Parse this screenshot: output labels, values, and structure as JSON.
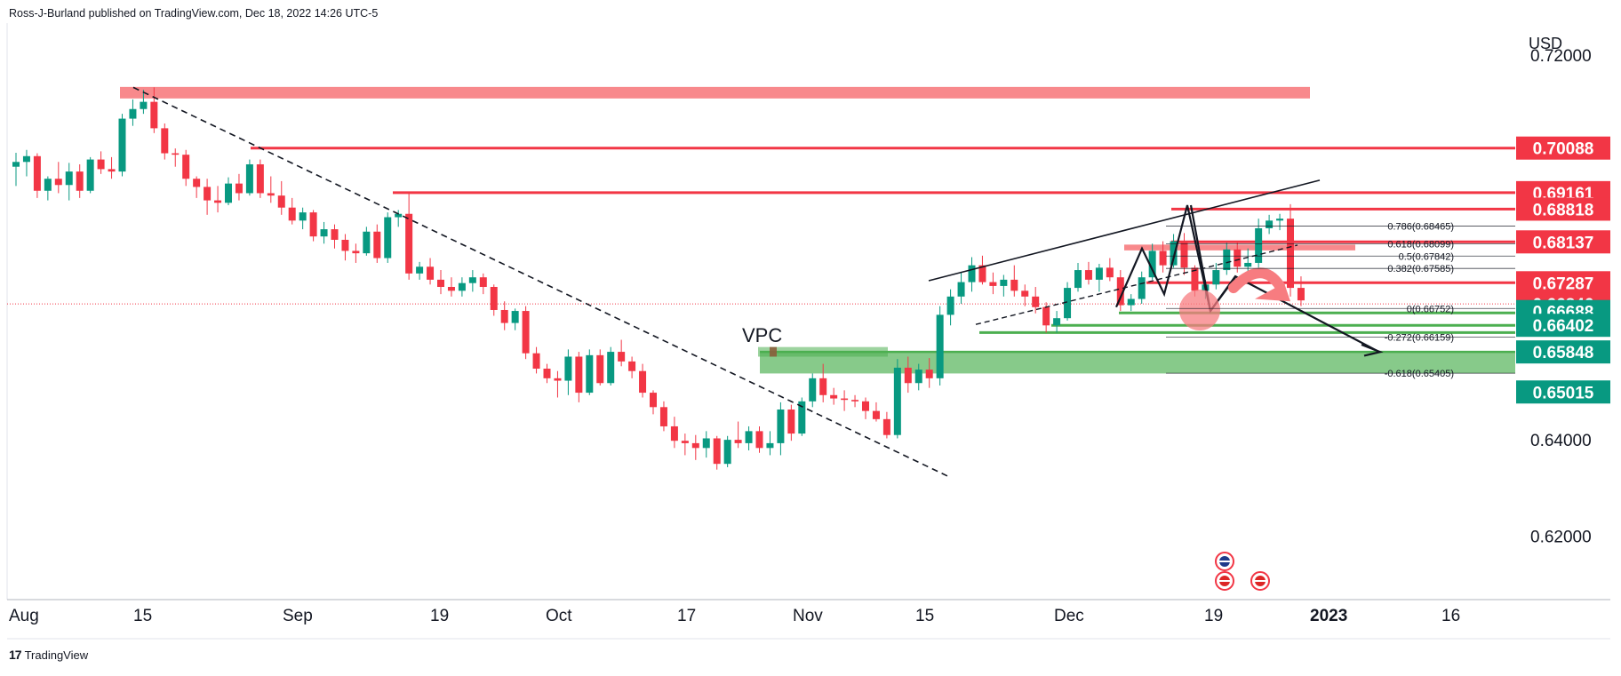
{
  "header": {
    "published_by": "Ross-J-Burland published on TradingView.com, Dec 18, 2022 14:26 UTC-5"
  },
  "footer": {
    "brand": "TradingView",
    "logo_glyph": "17"
  },
  "chart_data": {
    "type": "candlestick",
    "currency_label": "USD",
    "y_axis": {
      "range": [
        0.6053,
        0.7278
      ],
      "ticks": [
        "0.72000",
        "0.64000",
        "0.62000"
      ],
      "tick_values": [
        0.72,
        0.64,
        0.62
      ]
    },
    "x_axis": {
      "labels": [
        "Aug",
        "15",
        "Sep",
        "19",
        "Oct",
        "17",
        "Nov",
        "15",
        "Dec",
        "19",
        "2023",
        "16"
      ],
      "bold_labels": [
        "2023"
      ]
    },
    "price_labels": [
      {
        "text": "0.70088",
        "value": 0.70088,
        "color": "#f23645"
      },
      {
        "text": "0.69161",
        "value": 0.69161,
        "color": "#f23645"
      },
      {
        "text": "0.68818",
        "value": 0.68818,
        "color": "#f23645"
      },
      {
        "text": "0.68137",
        "value": 0.68137,
        "color": "#f23645"
      },
      {
        "text": "0.67287",
        "value": 0.67287,
        "color": "#f23645"
      },
      {
        "text": "0.66846",
        "value": 0.66846,
        "color": "#f23645"
      },
      {
        "text": "0.66688",
        "value": 0.66688,
        "color": "#089981"
      },
      {
        "text": "0.66402",
        "value": 0.66402,
        "color": "#089981"
      },
      {
        "text": "0.65848",
        "value": 0.65848,
        "color": "#089981"
      },
      {
        "text": "0.65015",
        "value": 0.65015,
        "color": "#089981"
      }
    ],
    "fib_levels": [
      {
        "text": "0.786(0.68465)",
        "value": 0.68465
      },
      {
        "text": "0.618(0.68099)",
        "value": 0.68099
      },
      {
        "text": "0.5(0.67842)",
        "value": 0.67842
      },
      {
        "text": "0.382(0.67585)",
        "value": 0.67585
      },
      {
        "text": "0(0.66752)",
        "value": 0.66752
      },
      {
        "text": "-0.272(0.66159)",
        "value": 0.66159
      },
      {
        "text": "-0.618(0.65405)",
        "value": 0.65405
      }
    ],
    "annotations": [
      {
        "text": "VPC"
      }
    ],
    "candles": [
      {
        "o": 0.697,
        "h": 0.6999,
        "l": 0.693,
        "c": 0.698
      },
      {
        "o": 0.698,
        "h": 0.7005,
        "l": 0.695,
        "c": 0.6992
      },
      {
        "o": 0.6992,
        "h": 0.6998,
        "l": 0.6905,
        "c": 0.692
      },
      {
        "o": 0.692,
        "h": 0.695,
        "l": 0.69,
        "c": 0.6945
      },
      {
        "o": 0.6945,
        "h": 0.698,
        "l": 0.6915,
        "c": 0.6932
      },
      {
        "o": 0.6932,
        "h": 0.6978,
        "l": 0.69,
        "c": 0.696
      },
      {
        "o": 0.696,
        "h": 0.6975,
        "l": 0.6905,
        "c": 0.692
      },
      {
        "o": 0.692,
        "h": 0.699,
        "l": 0.6915,
        "c": 0.6985
      },
      {
        "o": 0.6985,
        "h": 0.7002,
        "l": 0.6955,
        "c": 0.6965
      },
      {
        "o": 0.6965,
        "h": 0.699,
        "l": 0.6945,
        "c": 0.696
      },
      {
        "o": 0.696,
        "h": 0.708,
        "l": 0.695,
        "c": 0.707
      },
      {
        "o": 0.707,
        "h": 0.711,
        "l": 0.7055,
        "c": 0.709
      },
      {
        "o": 0.709,
        "h": 0.713,
        "l": 0.708,
        "c": 0.7105
      },
      {
        "o": 0.7105,
        "h": 0.7135,
        "l": 0.704,
        "c": 0.705
      },
      {
        "o": 0.705,
        "h": 0.706,
        "l": 0.6985,
        "c": 0.6998
      },
      {
        "o": 0.6998,
        "h": 0.7008,
        "l": 0.697,
        "c": 0.6995
      },
      {
        "o": 0.6995,
        "h": 0.7005,
        "l": 0.693,
        "c": 0.6945
      },
      {
        "o": 0.6945,
        "h": 0.695,
        "l": 0.6905,
        "c": 0.6928
      },
      {
        "o": 0.6928,
        "h": 0.6945,
        "l": 0.687,
        "c": 0.69
      },
      {
        "o": 0.69,
        "h": 0.693,
        "l": 0.6875,
        "c": 0.6895
      },
      {
        "o": 0.6895,
        "h": 0.6948,
        "l": 0.689,
        "c": 0.6935
      },
      {
        "o": 0.6935,
        "h": 0.6955,
        "l": 0.69,
        "c": 0.6915
      },
      {
        "o": 0.6915,
        "h": 0.6985,
        "l": 0.691,
        "c": 0.6975
      },
      {
        "o": 0.6975,
        "h": 0.6985,
        "l": 0.6905,
        "c": 0.6915
      },
      {
        "o": 0.6915,
        "h": 0.695,
        "l": 0.6895,
        "c": 0.691
      },
      {
        "o": 0.691,
        "h": 0.694,
        "l": 0.687,
        "c": 0.6885
      },
      {
        "o": 0.6885,
        "h": 0.6905,
        "l": 0.685,
        "c": 0.6858
      },
      {
        "o": 0.6858,
        "h": 0.6885,
        "l": 0.684,
        "c": 0.6875
      },
      {
        "o": 0.6875,
        "h": 0.688,
        "l": 0.6815,
        "c": 0.6825
      },
      {
        "o": 0.6825,
        "h": 0.6855,
        "l": 0.681,
        "c": 0.684
      },
      {
        "o": 0.684,
        "h": 0.685,
        "l": 0.68,
        "c": 0.6818
      },
      {
        "o": 0.6818,
        "h": 0.683,
        "l": 0.6775,
        "c": 0.6795
      },
      {
        "o": 0.6795,
        "h": 0.681,
        "l": 0.677,
        "c": 0.679
      },
      {
        "o": 0.679,
        "h": 0.6845,
        "l": 0.6785,
        "c": 0.6835
      },
      {
        "o": 0.6835,
        "h": 0.685,
        "l": 0.677,
        "c": 0.678
      },
      {
        "o": 0.678,
        "h": 0.6875,
        "l": 0.677,
        "c": 0.6865
      },
      {
        "o": 0.6865,
        "h": 0.688,
        "l": 0.6845,
        "c": 0.6872
      },
      {
        "o": 0.6872,
        "h": 0.6918,
        "l": 0.6735,
        "c": 0.6748
      },
      {
        "o": 0.6748,
        "h": 0.6772,
        "l": 0.6735,
        "c": 0.6762
      },
      {
        "o": 0.6762,
        "h": 0.678,
        "l": 0.6725,
        "c": 0.6735
      },
      {
        "o": 0.6735,
        "h": 0.6755,
        "l": 0.6705,
        "c": 0.672
      },
      {
        "o": 0.672,
        "h": 0.674,
        "l": 0.67,
        "c": 0.6712
      },
      {
        "o": 0.6712,
        "h": 0.674,
        "l": 0.67,
        "c": 0.6728
      },
      {
        "o": 0.6728,
        "h": 0.6755,
        "l": 0.671,
        "c": 0.674
      },
      {
        "o": 0.674,
        "h": 0.6748,
        "l": 0.6705,
        "c": 0.672
      },
      {
        "o": 0.672,
        "h": 0.6725,
        "l": 0.666,
        "c": 0.6672
      },
      {
        "o": 0.6672,
        "h": 0.669,
        "l": 0.663,
        "c": 0.6645
      },
      {
        "o": 0.6645,
        "h": 0.6675,
        "l": 0.663,
        "c": 0.667
      },
      {
        "o": 0.667,
        "h": 0.668,
        "l": 0.657,
        "c": 0.6582
      },
      {
        "o": 0.6582,
        "h": 0.6595,
        "l": 0.654,
        "c": 0.655
      },
      {
        "o": 0.655,
        "h": 0.656,
        "l": 0.652,
        "c": 0.653
      },
      {
        "o": 0.653,
        "h": 0.6545,
        "l": 0.649,
        "c": 0.6525
      },
      {
        "o": 0.6525,
        "h": 0.659,
        "l": 0.6495,
        "c": 0.6575
      },
      {
        "o": 0.6575,
        "h": 0.6585,
        "l": 0.648,
        "c": 0.65
      },
      {
        "o": 0.65,
        "h": 0.659,
        "l": 0.6495,
        "c": 0.6578
      },
      {
        "o": 0.6578,
        "h": 0.659,
        "l": 0.6515,
        "c": 0.652
      },
      {
        "o": 0.652,
        "h": 0.6595,
        "l": 0.6515,
        "c": 0.6585
      },
      {
        "o": 0.6585,
        "h": 0.661,
        "l": 0.6555,
        "c": 0.6565
      },
      {
        "o": 0.6565,
        "h": 0.6575,
        "l": 0.653,
        "c": 0.6545
      },
      {
        "o": 0.6545,
        "h": 0.656,
        "l": 0.649,
        "c": 0.65
      },
      {
        "o": 0.65,
        "h": 0.6505,
        "l": 0.6455,
        "c": 0.647
      },
      {
        "o": 0.647,
        "h": 0.6482,
        "l": 0.642,
        "c": 0.643
      },
      {
        "o": 0.643,
        "h": 0.645,
        "l": 0.6385,
        "c": 0.64
      },
      {
        "o": 0.64,
        "h": 0.6415,
        "l": 0.637,
        "c": 0.6395
      },
      {
        "o": 0.6395,
        "h": 0.6412,
        "l": 0.636,
        "c": 0.6385
      },
      {
        "o": 0.6385,
        "h": 0.642,
        "l": 0.6365,
        "c": 0.6405
      },
      {
        "o": 0.6405,
        "h": 0.641,
        "l": 0.634,
        "c": 0.6352
      },
      {
        "o": 0.6352,
        "h": 0.641,
        "l": 0.6345,
        "c": 0.6402
      },
      {
        "o": 0.6402,
        "h": 0.644,
        "l": 0.6385,
        "c": 0.6395
      },
      {
        "o": 0.6395,
        "h": 0.643,
        "l": 0.638,
        "c": 0.642
      },
      {
        "o": 0.642,
        "h": 0.643,
        "l": 0.6375,
        "c": 0.6385
      },
      {
        "o": 0.6385,
        "h": 0.642,
        "l": 0.637,
        "c": 0.6395
      },
      {
        "o": 0.6395,
        "h": 0.648,
        "l": 0.637,
        "c": 0.6465
      },
      {
        "o": 0.6465,
        "h": 0.6475,
        "l": 0.64,
        "c": 0.6415
      },
      {
        "o": 0.6415,
        "h": 0.649,
        "l": 0.641,
        "c": 0.6482
      },
      {
        "o": 0.6482,
        "h": 0.654,
        "l": 0.647,
        "c": 0.653
      },
      {
        "o": 0.653,
        "h": 0.656,
        "l": 0.648,
        "c": 0.6495
      },
      {
        "o": 0.6495,
        "h": 0.651,
        "l": 0.6475,
        "c": 0.6488
      },
      {
        "o": 0.6488,
        "h": 0.6505,
        "l": 0.6462,
        "c": 0.6485
      },
      {
        "o": 0.6485,
        "h": 0.6495,
        "l": 0.647,
        "c": 0.6482
      },
      {
        "o": 0.6482,
        "h": 0.649,
        "l": 0.6445,
        "c": 0.6462
      },
      {
        "o": 0.6462,
        "h": 0.648,
        "l": 0.644,
        "c": 0.6445
      },
      {
        "o": 0.6445,
        "h": 0.646,
        "l": 0.6405,
        "c": 0.6412
      },
      {
        "o": 0.6412,
        "h": 0.657,
        "l": 0.6405,
        "c": 0.6552
      },
      {
        "o": 0.6552,
        "h": 0.6575,
        "l": 0.65,
        "c": 0.652
      },
      {
        "o": 0.652,
        "h": 0.656,
        "l": 0.6505,
        "c": 0.6548
      },
      {
        "o": 0.6548,
        "h": 0.6572,
        "l": 0.651,
        "c": 0.653
      },
      {
        "o": 0.653,
        "h": 0.668,
        "l": 0.6515,
        "c": 0.6662
      },
      {
        "o": 0.6662,
        "h": 0.6715,
        "l": 0.664,
        "c": 0.67
      },
      {
        "o": 0.67,
        "h": 0.675,
        "l": 0.6685,
        "c": 0.673
      },
      {
        "o": 0.673,
        "h": 0.6782,
        "l": 0.671,
        "c": 0.6765
      },
      {
        "o": 0.6765,
        "h": 0.6785,
        "l": 0.6725,
        "c": 0.673
      },
      {
        "o": 0.673,
        "h": 0.675,
        "l": 0.6705,
        "c": 0.6722
      },
      {
        "o": 0.6722,
        "h": 0.6745,
        "l": 0.67,
        "c": 0.6735
      },
      {
        "o": 0.6735,
        "h": 0.6765,
        "l": 0.67,
        "c": 0.6712
      },
      {
        "o": 0.6712,
        "h": 0.6725,
        "l": 0.668,
        "c": 0.67
      },
      {
        "o": 0.67,
        "h": 0.672,
        "l": 0.6665,
        "c": 0.6678
      },
      {
        "o": 0.6678,
        "h": 0.6688,
        "l": 0.6625,
        "c": 0.664
      },
      {
        "o": 0.664,
        "h": 0.667,
        "l": 0.6625,
        "c": 0.6655
      },
      {
        "o": 0.6655,
        "h": 0.673,
        "l": 0.665,
        "c": 0.6718
      },
      {
        "o": 0.6718,
        "h": 0.677,
        "l": 0.671,
        "c": 0.6755
      },
      {
        "o": 0.6755,
        "h": 0.6772,
        "l": 0.6725,
        "c": 0.6735
      },
      {
        "o": 0.6735,
        "h": 0.6768,
        "l": 0.671,
        "c": 0.676
      },
      {
        "o": 0.676,
        "h": 0.678,
        "l": 0.6732,
        "c": 0.674
      },
      {
        "o": 0.674,
        "h": 0.6755,
        "l": 0.667,
        "c": 0.6682
      },
      {
        "o": 0.6682,
        "h": 0.6705,
        "l": 0.667,
        "c": 0.6695
      },
      {
        "o": 0.6695,
        "h": 0.6752,
        "l": 0.6685,
        "c": 0.674
      },
      {
        "o": 0.674,
        "h": 0.681,
        "l": 0.6735,
        "c": 0.6795
      },
      {
        "o": 0.6795,
        "h": 0.6815,
        "l": 0.675,
        "c": 0.6765
      },
      {
        "o": 0.6765,
        "h": 0.683,
        "l": 0.676,
        "c": 0.6815
      },
      {
        "o": 0.6815,
        "h": 0.6832,
        "l": 0.6745,
        "c": 0.676
      },
      {
        "o": 0.676,
        "h": 0.6765,
        "l": 0.67,
        "c": 0.6712
      },
      {
        "o": 0.6712,
        "h": 0.6735,
        "l": 0.6695,
        "c": 0.6725
      },
      {
        "o": 0.6725,
        "h": 0.677,
        "l": 0.6715,
        "c": 0.6755
      },
      {
        "o": 0.6755,
        "h": 0.6812,
        "l": 0.6745,
        "c": 0.6798
      },
      {
        "o": 0.6798,
        "h": 0.6815,
        "l": 0.675,
        "c": 0.6762
      },
      {
        "o": 0.6762,
        "h": 0.68,
        "l": 0.6745,
        "c": 0.677
      },
      {
        "o": 0.677,
        "h": 0.6862,
        "l": 0.676,
        "c": 0.6842
      },
      {
        "o": 0.6842,
        "h": 0.687,
        "l": 0.683,
        "c": 0.6858
      },
      {
        "o": 0.6858,
        "h": 0.6872,
        "l": 0.6838,
        "c": 0.6862
      },
      {
        "o": 0.6862,
        "h": 0.6892,
        "l": 0.67,
        "c": 0.6718
      },
      {
        "o": 0.6718,
        "h": 0.6742,
        "l": 0.668,
        "c": 0.6692
      }
    ]
  }
}
